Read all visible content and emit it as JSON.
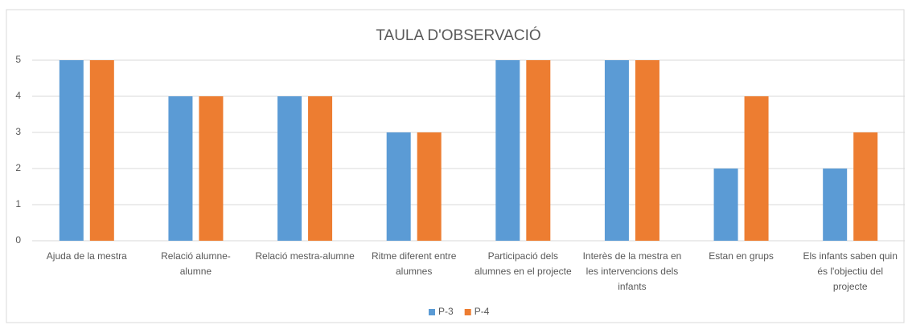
{
  "chart_data": {
    "type": "bar",
    "title": "TAULA D'OBSERVACIÓ",
    "categories": [
      "Ajuda de la mestra",
      "Relació alumne-alumne",
      "Relació mestra-alumne",
      "Ritme diferent entre alumnes",
      "Participació dels alumnes en el projecte",
      "Interès de la mestra en les intervencions dels infants",
      "Estan en grups",
      "Els infants saben quin és l'objectiu del projecte"
    ],
    "series": [
      {
        "name": "P-3",
        "color": "#5b9bd5",
        "values": [
          5,
          4,
          4,
          3,
          5,
          5,
          2,
          2
        ]
      },
      {
        "name": "P-4",
        "color": "#ed7d31",
        "values": [
          5,
          4,
          4,
          3,
          5,
          5,
          4,
          3
        ]
      }
    ],
    "ylim": [
      0,
      5
    ],
    "yticks": [
      0,
      1,
      2,
      3,
      4,
      5
    ],
    "grid": true,
    "legend": "bottom"
  }
}
